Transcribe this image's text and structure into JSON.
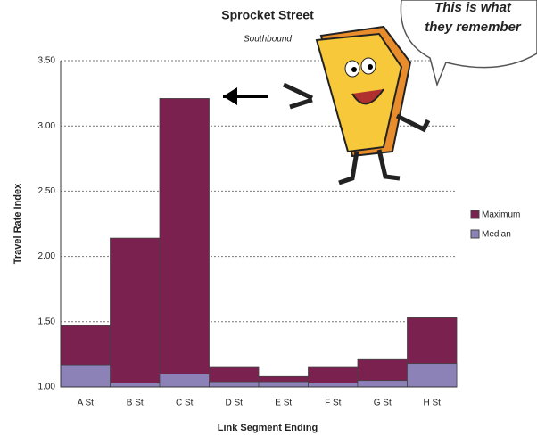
{
  "chart_data": {
    "type": "bar",
    "title": "Sprocket Street",
    "subtitle": "Southbound",
    "x_label": "Link Segment Ending",
    "y_label": "Travel Rate Index",
    "categories": [
      "A St",
      "B St",
      "C St",
      "D St",
      "E St",
      "F St",
      "G St",
      "H St"
    ],
    "series": [
      {
        "name": "Maximum",
        "color": "#7b2150",
        "values": [
          1.47,
          2.14,
          3.21,
          1.15,
          1.08,
          1.15,
          1.21,
          1.53
        ]
      },
      {
        "name": "Median",
        "color": "#8c82b8",
        "values": [
          1.17,
          1.03,
          1.1,
          1.04,
          1.04,
          1.03,
          1.05,
          1.18
        ]
      }
    ],
    "ylim": [
      1.0,
      3.5
    ],
    "yticks": [
      {
        "value": 1.0,
        "label": "1.00"
      },
      {
        "value": 1.5,
        "label": "1.50"
      },
      {
        "value": 2.0,
        "label": "2.00"
      },
      {
        "value": 2.5,
        "label": "2.50"
      },
      {
        "value": 3.0,
        "label": "3.00"
      },
      {
        "value": 3.5,
        "label": "3.50"
      }
    ],
    "grid": true,
    "annotation": [
      "This is what",
      "they remember"
    ]
  }
}
